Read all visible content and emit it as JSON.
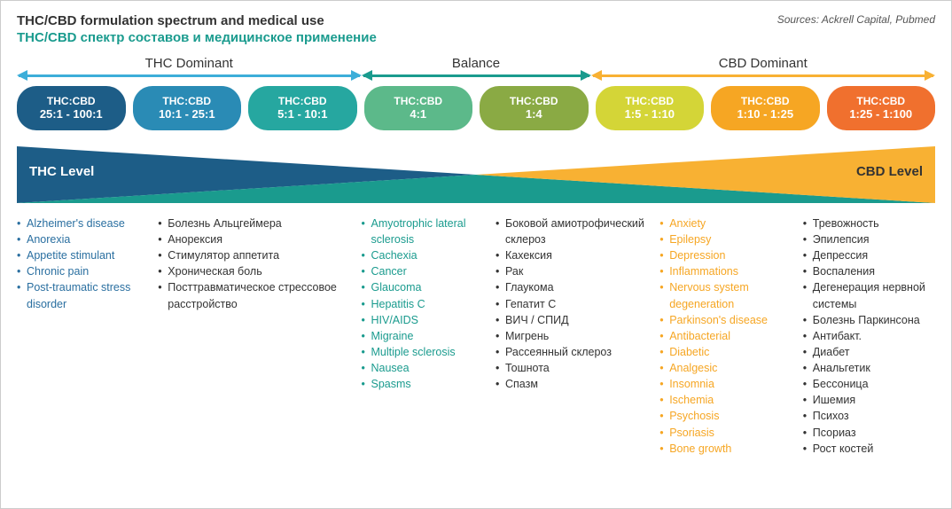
{
  "title_en": "THC/CBD formulation spectrum and medical use",
  "title_ru": "THC/CBD спектр составов и медицинское применение",
  "title_ru_color": "#1a9b8e",
  "sources": "Sources: Ackrell Capital, Pubmed",
  "segments": [
    {
      "label": "THC Dominant",
      "color": "#3daed9",
      "width_pct": 37.5
    },
    {
      "label": "Balance",
      "color": "#1a9b8e",
      "width_pct": 25.0
    },
    {
      "label": "CBD Dominant",
      "color": "#f8b133",
      "width_pct": 37.5
    }
  ],
  "pills": [
    {
      "top": "THC:CBD",
      "bottom": "25:1 - 100:1",
      "color": "#1d5d87"
    },
    {
      "top": "THC:CBD",
      "bottom": "10:1 - 25:1",
      "color": "#2a8bb5"
    },
    {
      "top": "THC:CBD",
      "bottom": "5:1 - 10:1",
      "color": "#26a7a0"
    },
    {
      "top": "THC:CBD",
      "bottom": "4:1",
      "color": "#5cb98a"
    },
    {
      "top": "THC:CBD",
      "bottom": "1:4",
      "color": "#8aaa44"
    },
    {
      "top": "THC:CBD",
      "bottom": "1:5 - 1:10",
      "color": "#d4d537"
    },
    {
      "top": "THC:CBD",
      "bottom": "1:10 - 1:25",
      "color": "#f6a623"
    },
    {
      "top": "THC:CBD",
      "bottom": "1:25 - 1:100",
      "color": "#f0702e"
    }
  ],
  "wedges": {
    "left": {
      "label": "THC Level",
      "color": "#1d5d87",
      "label_color": "#ffffff"
    },
    "center": {
      "color": "#1a9b8e"
    },
    "right": {
      "label": "CBD Level",
      "color": "#f8b133",
      "label_color": "#333333"
    }
  },
  "condition_groups": [
    {
      "width_pct": 37.5,
      "color": "#2a6fa0",
      "en_col_width_pct": 41,
      "ru_col_width_pct": 59,
      "en": [
        "Alzheimer's disease",
        "Anorexia",
        "Appetite stimulant",
        "Chronic pain",
        "Post-traumatic stress disorder"
      ],
      "ru": [
        "Болезнь Альцгеймера",
        "Анорексия",
        "Стимулятор аппетита",
        "Хроническая боль",
        "Посттравматическое стрессовое расстройство"
      ]
    },
    {
      "width_pct": 32.5,
      "color": "#1a9b8e",
      "en_col_width_pct": 45,
      "ru_col_width_pct": 55,
      "en": [
        "Amyotrophic lateral sclerosis",
        "Cachexia",
        "Cancer",
        "Glaucoma",
        "Hepatitis C",
        "HIV/AIDS",
        "Migraine",
        "Multiple sclerosis",
        "Nausea",
        "Spasms"
      ],
      "ru": [
        "Боковой амиотрофический склероз",
        "Кахексия",
        "Рак",
        "Глаукома",
        "Гепатит C",
        "ВИЧ / СПИД",
        "Мигрень",
        "Рассеянный склероз",
        "Тошнота",
        "Спазм"
      ]
    },
    {
      "width_pct": 30.0,
      "color": "#f6a623",
      "en_col_width_pct": 52,
      "ru_col_width_pct": 48,
      "en": [
        "Anxiety",
        "Epilepsy",
        "Depression",
        "Inflammations",
        "Nervous system degeneration",
        "Parkinson's disease",
        "Antibacterial",
        "Diabetic",
        "Analgesic",
        "Insomnia",
        "Ischemia",
        "Psychosis",
        "Psoriasis",
        "Bone growth"
      ],
      "ru": [
        "Тревожность",
        "Эпилепсия",
        "Депрессия",
        "Воспаления",
        "Дегенерация нервной системы",
        "Болезнь Паркинсона",
        "Антибакт.",
        "Диабет",
        "Анальгетик",
        "Бессоница",
        "Ишемия",
        "Психоз",
        "Псориаз",
        "Рост костей"
      ]
    }
  ]
}
